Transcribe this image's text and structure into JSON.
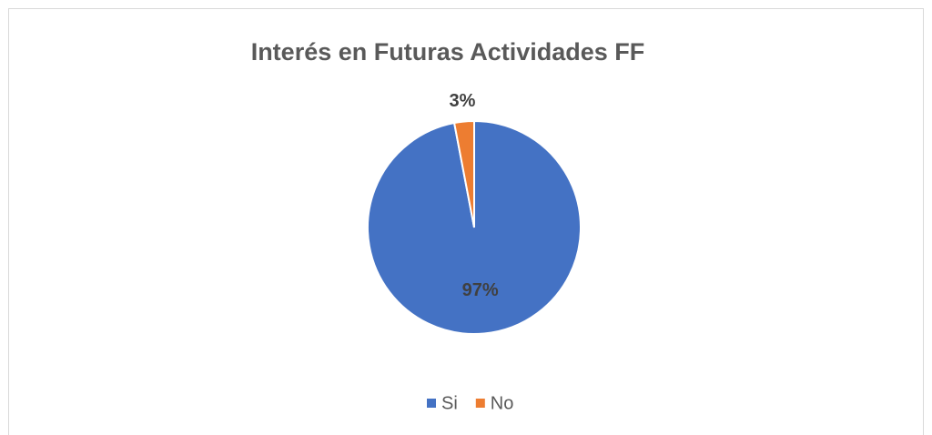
{
  "chart_data": {
    "type": "pie",
    "title": "Interés en Futuras Actividades FF",
    "categories": [
      "Si",
      "No"
    ],
    "values": [
      97,
      3
    ],
    "value_labels": [
      "97%",
      "3%"
    ],
    "colors": [
      "#4472c4",
      "#ed7d31"
    ],
    "legend": "bottom"
  }
}
